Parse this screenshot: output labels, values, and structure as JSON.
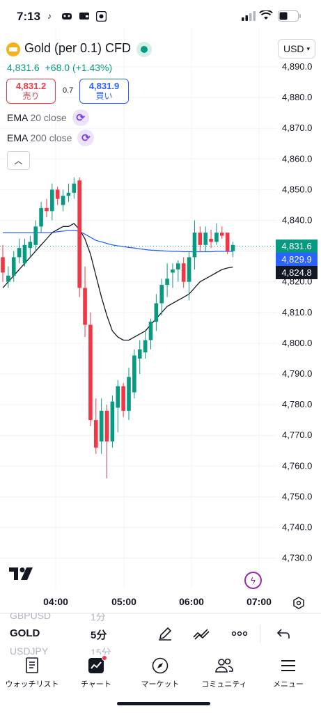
{
  "status_bar": {
    "time": "7:13",
    "carrier_icons": [
      "tiktok-icon",
      "game-icon",
      "wallet-icon",
      "app-icon"
    ],
    "battery_icon": "battery-icon"
  },
  "symbol": {
    "name": "Gold (per 0.1) CFD",
    "currency": "USD",
    "last": "4,831.6",
    "change": "+68.0",
    "change_pct": "(+1.43%)"
  },
  "trade": {
    "sell_price": "4,831.2",
    "sell_label": "売り",
    "spread": "0.7",
    "buy_price": "4,831.9",
    "buy_label": "買い"
  },
  "indicators": [
    {
      "name": "EMA",
      "args": "20 close"
    },
    {
      "name": "EMA",
      "args": "200 close"
    }
  ],
  "axis": {
    "y_ticks": [
      "4,890.0",
      "4,880.0",
      "4,870.0",
      "4,860.0",
      "4,850.0",
      "4,840.0",
      "4,830.0",
      "4,820.0",
      "4,810.0",
      "4,800.0",
      "4,790.0",
      "4,780.0",
      "4,770.0",
      "4,760.0",
      "4,750.0",
      "4,740.0",
      "4,730.0"
    ],
    "x_ticks": [
      "04:00",
      "05:00",
      "06:00",
      "07:00"
    ]
  },
  "price_tags": {
    "last": "4,831.6",
    "ema200": "4,829.9",
    "ema20": "4,824.8"
  },
  "colors": {
    "up": "#089981",
    "down": "#f23645",
    "ema20": "#131722",
    "ema200": "#2962ff",
    "accent_purple": "#9c27b0"
  },
  "toolbar": {
    "symbols": [
      "GBPUSD",
      "GOLD",
      "USDJPY"
    ],
    "intervals": [
      "1分",
      "5分",
      "15分"
    ],
    "tools": [
      "draw-icon",
      "line-tools-icon",
      "more-icon",
      "undo-icon"
    ]
  },
  "tabs": [
    {
      "label": "ウォッチリスト",
      "icon": "watchlist-icon"
    },
    {
      "label": "チャート",
      "icon": "chart-icon"
    },
    {
      "label": "マーケット",
      "icon": "compass-icon"
    },
    {
      "label": "コミュニティ",
      "icon": "community-icon"
    },
    {
      "label": "メニュー",
      "icon": "menu-icon"
    }
  ],
  "chart_data": {
    "type": "candlestick",
    "symbol": "Gold (per 0.1) CFD",
    "interval": "5分",
    "x_ticks": [
      "04:00",
      "05:00",
      "06:00",
      "07:00"
    ],
    "ylim": [
      4724,
      4894
    ],
    "candles": [
      [
        4828,
        4832,
        4820,
        4823
      ],
      [
        4820,
        4825,
        4818,
        4822
      ],
      [
        4822,
        4830,
        4820,
        4828
      ],
      [
        4828,
        4834,
        4826,
        4831
      ],
      [
        4826,
        4834,
        4825,
        4832
      ],
      [
        4831,
        4835,
        4828,
        4833
      ],
      [
        4832,
        4840,
        4830,
        4838
      ],
      [
        4838,
        4846,
        4836,
        4844
      ],
      [
        4844,
        4847,
        4841,
        4843
      ],
      [
        4843,
        4852,
        4840,
        4850
      ],
      [
        4850,
        4851,
        4845,
        4847
      ],
      [
        4845,
        4850,
        4843,
        4848
      ],
      [
        4848,
        4852,
        4846,
        4849
      ],
      [
        4849,
        4854,
        4847,
        4852
      ],
      [
        4853,
        4854,
        4815,
        4818
      ],
      [
        4818,
        4825,
        4802,
        4806
      ],
      [
        4806,
        4810,
        4773,
        4775
      ],
      [
        4775,
        4782,
        4764,
        4766
      ],
      [
        4768,
        4782,
        4764,
        4778
      ],
      [
        4778,
        4780,
        4756,
        4768
      ],
      [
        4768,
        4783,
        4766,
        4781
      ],
      [
        4779,
        4788,
        4771,
        4786
      ],
      [
        4786,
        4787,
        4776,
        4778
      ],
      [
        4778,
        4792,
        4775,
        4789
      ],
      [
        4784,
        4798,
        4782,
        4796
      ],
      [
        4795,
        4801,
        4790,
        4798
      ],
      [
        4797,
        4804,
        4795,
        4801
      ],
      [
        4801,
        4808,
        4798,
        4807
      ],
      [
        4807,
        4816,
        4804,
        4813
      ],
      [
        4813,
        4821,
        4809,
        4819
      ],
      [
        4819,
        4826,
        4815,
        4821
      ],
      [
        4823,
        4826,
        4818,
        4824
      ],
      [
        4824,
        4827,
        4820,
        4826
      ],
      [
        4826,
        4828,
        4818,
        4820
      ],
      [
        4820,
        4830,
        4814,
        4828
      ],
      [
        4828,
        4840,
        4824,
        4836
      ],
      [
        4836,
        4838,
        4830,
        4832
      ],
      [
        4832,
        4838,
        4830,
        4836
      ],
      [
        4834,
        4837,
        4831,
        4833
      ],
      [
        4833,
        4839,
        4832,
        4836
      ],
      [
        4836,
        4838,
        4834,
        4835
      ],
      [
        4836,
        4836,
        4829,
        4830
      ],
      [
        4830,
        4833,
        4828,
        4832
      ]
    ],
    "series": [
      {
        "name": "EMA 20 close",
        "values": [
          4818,
          4820,
          4822,
          4824,
          4826,
          4828,
          4830,
          4832,
          4834,
          4836,
          4837,
          4838,
          4838,
          4839,
          4837,
          4834,
          4829,
          4822,
          4815,
          4809,
          4804,
          4802,
          4801,
          4801,
          4802,
          4803,
          4804,
          4806,
          4808,
          4810,
          4812,
          4813,
          4814,
          4815,
          4816,
          4818,
          4820,
          4821,
          4822,
          4823,
          4824,
          4824.5,
          4824.8
        ]
      },
      {
        "name": "EMA 200 close",
        "values": [
          4836,
          4836,
          4836,
          4836,
          4836,
          4836,
          4836,
          4836,
          4836,
          4836,
          4836.3,
          4836.5,
          4836.7,
          4836.8,
          4836.4,
          4835.5,
          4834.5,
          4833.5,
          4833,
          4832.5,
          4832,
          4831.7,
          4831.5,
          4831.2,
          4831,
          4830.7,
          4830.5,
          4830.3,
          4830.2,
          4830.1,
          4830,
          4829.9,
          4829.9,
          4829.8,
          4829.8,
          4829.8,
          4829.8,
          4829.8,
          4829.8,
          4829.9,
          4829.9,
          4829.9,
          4829.9
        ]
      }
    ]
  }
}
